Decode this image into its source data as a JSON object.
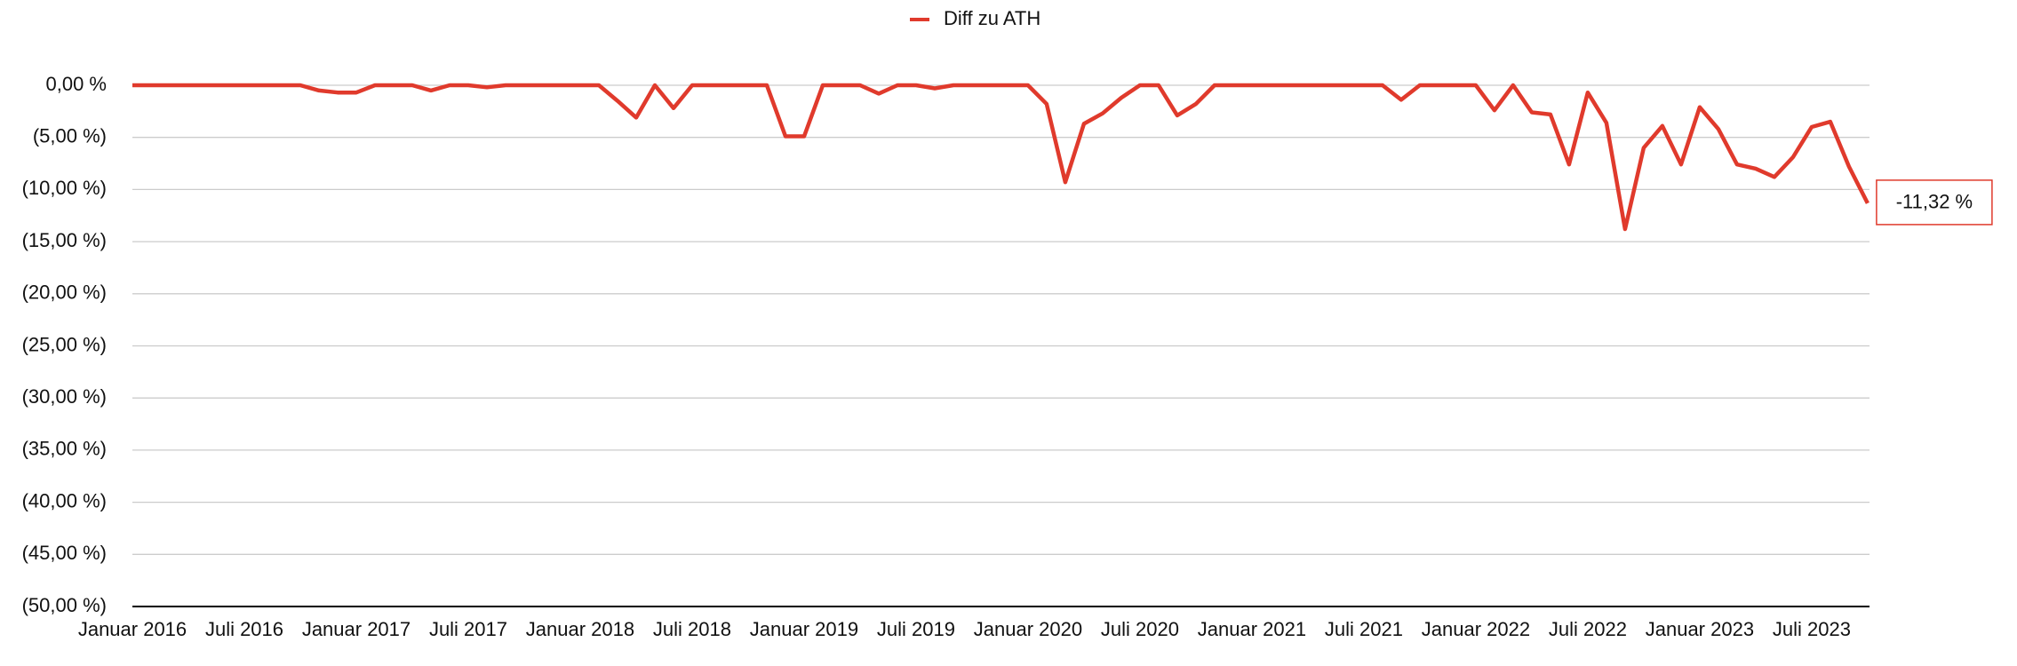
{
  "chart_data": {
    "type": "line",
    "categories": [
      "Januar 2016",
      null,
      null,
      null,
      null,
      null,
      "Juli 2016",
      null,
      null,
      null,
      null,
      null,
      "Januar 2017",
      null,
      null,
      null,
      null,
      null,
      "Juli 2017",
      null,
      null,
      null,
      null,
      null,
      "Januar 2018",
      null,
      null,
      null,
      null,
      null,
      "Juli 2018",
      null,
      null,
      null,
      null,
      null,
      "Januar 2019",
      null,
      null,
      null,
      null,
      null,
      "Juli 2019",
      null,
      null,
      null,
      null,
      null,
      "Januar 2020",
      null,
      null,
      null,
      null,
      null,
      "Juli 2020",
      null,
      null,
      null,
      null,
      null,
      "Januar 2021",
      null,
      null,
      null,
      null,
      null,
      "Juli 2021",
      null,
      null,
      null,
      null,
      null,
      "Januar 2022",
      null,
      null,
      null,
      null,
      null,
      "Juli 2022",
      null,
      null,
      null,
      null,
      null,
      "Januar 2023",
      null,
      null,
      null,
      null,
      null,
      "Juli 2023",
      null,
      null,
      null
    ],
    "series": [
      {
        "name": "Diff zu ATH",
        "color": "#e03a2c",
        "values": [
          0,
          0,
          0,
          0,
          0,
          0,
          0,
          0,
          0,
          0,
          -0.5,
          -0.7,
          -0.7,
          0,
          0,
          0,
          -0.5,
          0,
          0,
          -0.2,
          0,
          0,
          0,
          0,
          0,
          0,
          -1.5,
          -3.1,
          0,
          -2.2,
          0,
          0,
          0,
          0,
          0,
          -4.9,
          -4.9,
          0,
          0,
          0,
          -0.8,
          0,
          0,
          -0.3,
          0,
          0,
          0,
          0,
          0,
          -1.8,
          -9.3,
          -3.7,
          -2.7,
          -1.2,
          0,
          0,
          -2.9,
          -1.8,
          0,
          0,
          0,
          0,
          0,
          0,
          0,
          0,
          0,
          0,
          -1.4,
          0,
          0,
          0,
          0,
          -2.4,
          0,
          -2.6,
          -2.8,
          -7.6,
          -0.7,
          -3.6,
          -13.8,
          -6.0,
          -3.9,
          -7.6,
          -2.1,
          -4.2,
          -7.6,
          -8.0,
          -8.8,
          -6.9,
          -4.0,
          -3.5,
          -7.8,
          -11.32
        ],
        "value_labels": [
          null,
          null,
          null,
          null,
          null,
          null,
          null,
          null,
          null,
          null,
          null,
          null,
          null,
          null,
          null,
          null,
          null,
          null,
          null,
          null,
          null,
          null,
          null,
          null,
          null,
          null,
          null,
          null,
          null,
          null,
          null,
          null,
          null,
          null,
          null,
          null,
          null,
          null,
          null,
          null,
          null,
          null,
          null,
          null,
          null,
          null,
          null,
          null,
          null,
          null,
          null,
          null,
          null,
          null,
          null,
          null,
          null,
          null,
          null,
          null,
          null,
          null,
          null,
          null,
          null,
          null,
          null,
          null,
          null,
          null,
          null,
          null,
          null,
          null,
          null,
          null,
          null,
          null,
          null,
          null,
          null,
          null,
          null,
          null,
          null,
          null,
          null,
          null,
          null,
          null,
          null,
          null,
          null,
          "-11,32 %"
        ]
      }
    ],
    "ylim": [
      -50,
      0
    ],
    "yticks": [
      {
        "value": 0,
        "label": "0,00 %"
      },
      {
        "value": -5,
        "label": "(5,00 %)"
      },
      {
        "value": -10,
        "label": "(10,00 %)"
      },
      {
        "value": -15,
        "label": "(15,00 %)"
      },
      {
        "value": -20,
        "label": "(20,00 %)"
      },
      {
        "value": -25,
        "label": "(25,00 %)"
      },
      {
        "value": -30,
        "label": "(30,00 %)"
      },
      {
        "value": -35,
        "label": "(35,00 %)"
      },
      {
        "value": -40,
        "label": "(40,00 %)"
      },
      {
        "value": -45,
        "label": "(45,00 %)"
      },
      {
        "value": -50,
        "label": "(50,00 %)"
      }
    ],
    "grid": true,
    "legend": "top"
  }
}
